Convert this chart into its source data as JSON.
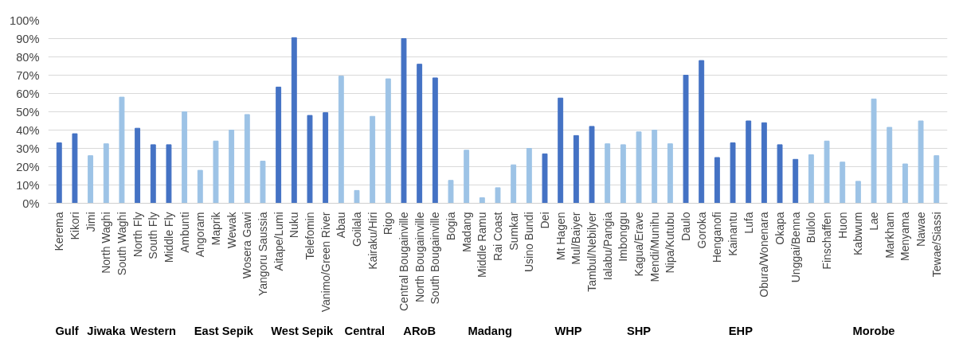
{
  "chart_data": {
    "type": "bar",
    "categories": [
      "Kerema",
      "Kikori",
      "Jimi",
      "North Waghi",
      "South Waghi",
      "North Fly",
      "South Fly",
      "Middle Fly",
      "Ambunti",
      "Angoram",
      "Maprik",
      "Wewak",
      "Wosera Gawi",
      "Yangoru Saussia",
      "Aitape/Lumi",
      "Nuku",
      "Telefomin",
      "Vanimo/Green River",
      "Abau",
      "Goilala",
      "Kairaku/Hiri",
      "Rigo",
      "Central Bougainville",
      "North Bougainville",
      "South Bougainville",
      "Bogia",
      "Madang",
      "Middle Ramu",
      "Rai Coast",
      "Sumkar",
      "Usino Bundi",
      "Dei",
      "Mt Hagen",
      "Mul/Baiyer",
      "Tambul/Nebilyer",
      "Ialabu/Pangia",
      "Imbonggu",
      "Kagua/Erave",
      "Mendi/Munihu",
      "Nipa/Kutubu",
      "Daulo",
      "Goroka",
      "Henganofi",
      "Kainantu",
      "Lufa",
      "Obura/Wonenara",
      "Okapa",
      "Unggai/Benna",
      "Bulolo",
      "Finschaffen",
      "Huon",
      "Kabwum",
      "Lae",
      "Markham",
      "Menyama",
      "Nawae",
      "Tewae/Siassi"
    ],
    "values": [
      33,
      38,
      26,
      32.5,
      58,
      41,
      32,
      32,
      50,
      18,
      34,
      40,
      48.5,
      23,
      63.5,
      90.5,
      48,
      49.5,
      69.5,
      7,
      47.5,
      68,
      90,
      76,
      68.5,
      12.5,
      29,
      3,
      8.5,
      21,
      30,
      27,
      57.5,
      37,
      42,
      32.5,
      32,
      39,
      40,
      32.5,
      70,
      78,
      25,
      33,
      45,
      44,
      32,
      24,
      26.5,
      34,
      22.5,
      12,
      57,
      41.5,
      21.5,
      45,
      26
    ],
    "colors": [
      "#4472c4",
      "#4472c4",
      "#9dc3e6",
      "#9dc3e6",
      "#9dc3e6",
      "#4472c4",
      "#4472c4",
      "#4472c4",
      "#9dc3e6",
      "#9dc3e6",
      "#9dc3e6",
      "#9dc3e6",
      "#9dc3e6",
      "#9dc3e6",
      "#4472c4",
      "#4472c4",
      "#4472c4",
      "#4472c4",
      "#9dc3e6",
      "#9dc3e6",
      "#9dc3e6",
      "#9dc3e6",
      "#4472c4",
      "#4472c4",
      "#4472c4",
      "#9dc3e6",
      "#9dc3e6",
      "#9dc3e6",
      "#9dc3e6",
      "#9dc3e6",
      "#9dc3e6",
      "#4472c4",
      "#4472c4",
      "#4472c4",
      "#4472c4",
      "#9dc3e6",
      "#9dc3e6",
      "#9dc3e6",
      "#9dc3e6",
      "#9dc3e6",
      "#4472c4",
      "#4472c4",
      "#4472c4",
      "#4472c4",
      "#4472c4",
      "#4472c4",
      "#4472c4",
      "#4472c4",
      "#9dc3e6",
      "#9dc3e6",
      "#9dc3e6",
      "#9dc3e6",
      "#9dc3e6",
      "#9dc3e6",
      "#9dc3e6",
      "#9dc3e6",
      "#9dc3e6"
    ],
    "ylim": [
      0,
      100
    ],
    "yticks": [
      {
        "value": 0,
        "label": "0%"
      },
      {
        "value": 10,
        "label": "10%"
      },
      {
        "value": 20,
        "label": "20%"
      },
      {
        "value": 30,
        "label": "30%"
      },
      {
        "value": 40,
        "label": "40%"
      },
      {
        "value": 50,
        "label": "50%"
      },
      {
        "value": 60,
        "label": "60%"
      },
      {
        "value": 70,
        "label": "70%"
      },
      {
        "value": 80,
        "label": "80%"
      },
      {
        "value": 90,
        "label": "90%"
      },
      {
        "value": 100,
        "label": "100%"
      }
    ],
    "grid": "y",
    "annotations": [
      "Gulf",
      "Jiwaka",
      "Western",
      "East Sepik",
      "West Sepik",
      "Central",
      "ARoB",
      "Madang",
      "WHP",
      "SHP",
      "EHP",
      "Morobe"
    ]
  }
}
